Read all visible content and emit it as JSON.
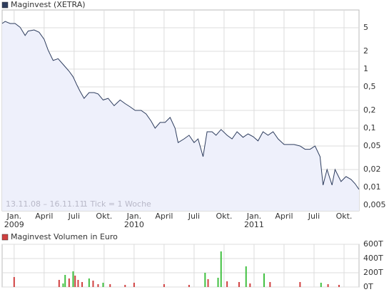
{
  "chart_data": [
    {
      "type": "line",
      "title": "Maginvest (XETRA)",
      "log_scale": true,
      "grid": true,
      "color": "#2e3d5e",
      "fill": "#eef0fb",
      "annotations": [
        "13.11.08 – 16.11.11",
        "1 Tick = 1 Woche"
      ],
      "x": [
        -1.2,
        -0.9,
        -0.4,
        0.1,
        0.6,
        1.1,
        1.4,
        2.0,
        2.5,
        3.0,
        3.4,
        3.9,
        4.4,
        5.0,
        5.5,
        5.9,
        6.3,
        6.6,
        7.0,
        7.5,
        8.0,
        8.4,
        8.9,
        9.4,
        10.0,
        10.6,
        11.1,
        11.6,
        12.1,
        12.7,
        13.2,
        13.7,
        14.1,
        14.6,
        15.1,
        15.6,
        16.1,
        16.4,
        17.0,
        17.5,
        18.0,
        18.4,
        18.9,
        19.3,
        19.8,
        20.2,
        20.7,
        21.3,
        21.8,
        22.3,
        22.9,
        23.4,
        23.9,
        24.4,
        24.9,
        25.4,
        25.9,
        26.4,
        27.0,
        27.5,
        28.0,
        28.6,
        29.1,
        29.6,
        30.1,
        30.6,
        30.9,
        31.3,
        31.8,
        32.1,
        32.7,
        33.2,
        33.7,
        34.1,
        34.5
      ],
      "values": [
        5.9,
        6.4,
        5.9,
        5.9,
        5.1,
        3.7,
        4.4,
        4.6,
        4.2,
        3.2,
        2.1,
        1.4,
        1.5,
        1.15,
        0.92,
        0.74,
        0.53,
        0.42,
        0.32,
        0.4,
        0.4,
        0.38,
        0.3,
        0.32,
        0.24,
        0.3,
        0.26,
        0.23,
        0.2,
        0.2,
        0.174,
        0.132,
        0.1,
        0.125,
        0.125,
        0.152,
        0.1,
        0.057,
        0.066,
        0.076,
        0.057,
        0.066,
        0.033,
        0.087,
        0.087,
        0.076,
        0.095,
        0.076,
        0.066,
        0.087,
        0.07,
        0.08,
        0.072,
        0.061,
        0.087,
        0.076,
        0.087,
        0.066,
        0.053,
        0.053,
        0.053,
        0.05,
        0.044,
        0.044,
        0.05,
        0.033,
        0.0109,
        0.02,
        0.0109,
        0.02,
        0.0125,
        0.0152,
        0.0136,
        0.0115,
        0.0092
      ],
      "xlim": [
        -1.2,
        34.5
      ],
      "xticks": [
        {
          "value": 0,
          "label": "Jan."
        },
        {
          "value": 3,
          "label": "April"
        },
        {
          "value": 6,
          "label": "Juli"
        },
        {
          "value": 9,
          "label": "Okt."
        },
        {
          "value": 12,
          "label": "Jan."
        },
        {
          "value": 15,
          "label": "April"
        },
        {
          "value": 18,
          "label": "Juli"
        },
        {
          "value": 21,
          "label": "Okt."
        },
        {
          "value": 24,
          "label": "Jan."
        },
        {
          "value": 27,
          "label": "April"
        },
        {
          "value": 30,
          "label": "Juli"
        },
        {
          "value": 33,
          "label": "Okt."
        }
      ],
      "xyears": [
        {
          "value": 0,
          "label": "2009"
        },
        {
          "value": 12,
          "label": "2010"
        },
        {
          "value": 24,
          "label": "2011"
        }
      ],
      "ylim": [
        0.004,
        10
      ],
      "yticks": [
        5,
        2,
        1,
        {
          "value": 0.5,
          "label": "0,5"
        },
        {
          "value": 0.2,
          "label": "0,2"
        },
        {
          "value": 0.1,
          "label": "0,1"
        },
        {
          "value": 0.05,
          "label": "0,05"
        },
        {
          "value": 0.02,
          "label": "0,02"
        },
        {
          "value": 0.01,
          "label": "0,01"
        },
        {
          "value": 0.005,
          "label": "0,005"
        }
      ]
    },
    {
      "type": "bar",
      "title": "Maginvest Volumen in Euro",
      "grid": true,
      "x": [
        0,
        4.5,
        4.9,
        5.1,
        5.5,
        5.9,
        6.1,
        6.4,
        6.8,
        7.5,
        7.9,
        8.4,
        8.9,
        9.6,
        11.1,
        12,
        15,
        17.5,
        19.1,
        19.4,
        20.4,
        20.7,
        21.3,
        22.5,
        23.2,
        23.6,
        25,
        25.6,
        28.6,
        30.7,
        31.4,
        32.5
      ],
      "values": [
        140,
        100,
        50,
        170,
        120,
        220,
        160,
        100,
        70,
        120,
        90,
        40,
        60,
        40,
        30,
        60,
        40,
        30,
        200,
        110,
        130,
        500,
        80,
        70,
        290,
        50,
        190,
        70,
        70,
        60,
        40,
        30
      ],
      "colors": [
        "#d04040",
        "#d04040",
        "#40c040",
        "#40c040",
        "#d04040",
        "#40c040",
        "#d04040",
        "#d04040",
        "#d04040",
        "#40c040",
        "#d04040",
        "#d04040",
        "#40c040",
        "#d04040",
        "#d04040",
        "#d04040",
        "#d04040",
        "#d04040",
        "#40c040",
        "#d04040",
        "#40c040",
        "#40c040",
        "#d04040",
        "#d04040",
        "#40c040",
        "#d04040",
        "#40c040",
        "#d04040",
        "#d04040",
        "#40c040",
        "#d04040",
        "#d04040"
      ],
      "legend_color": "#d04040",
      "xlim": [
        -1.2,
        34.5
      ],
      "ylim": [
        0,
        600
      ],
      "yticks": [
        {
          "value": 0,
          "label": "0T"
        },
        {
          "value": 200,
          "label": "200T"
        },
        {
          "value": 400,
          "label": "400T"
        },
        {
          "value": 600,
          "label": "600T"
        }
      ]
    }
  ]
}
